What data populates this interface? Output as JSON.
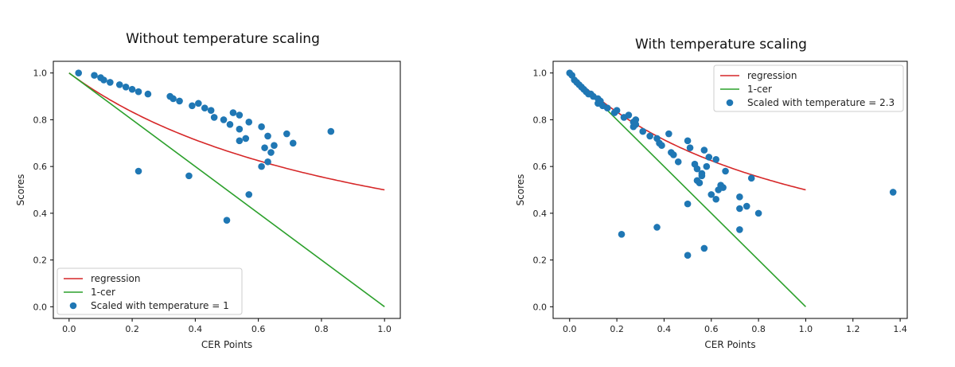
{
  "chart_data": [
    {
      "type": "scatter",
      "title": "Without temperature scaling",
      "xlabel": "CER Points",
      "ylabel": "Scores",
      "xlim": [
        -0.05,
        1.05
      ],
      "ylim": [
        -0.05,
        1.05
      ],
      "xticks": [
        "0.0",
        "0.2",
        "0.4",
        "0.6",
        "0.8",
        "1.0"
      ],
      "yticks": [
        "0.0",
        "0.2",
        "0.4",
        "0.6",
        "0.8",
        "1.0"
      ],
      "legend_position": "lower-left",
      "grid": false,
      "series": [
        {
          "name": "regression",
          "kind": "line",
          "color": "#d62728",
          "formula": "1/(1+x)",
          "x": [
            0,
            0.1,
            0.2,
            0.3,
            0.4,
            0.5,
            0.6,
            0.7,
            0.8,
            0.9,
            1.0
          ],
          "y": [
            1.0,
            0.909,
            0.833,
            0.769,
            0.714,
            0.667,
            0.625,
            0.588,
            0.556,
            0.526,
            0.5
          ]
        },
        {
          "name": "1-cer",
          "kind": "line",
          "color": "#2ca02c",
          "x": [
            0,
            1.0
          ],
          "y": [
            1.0,
            0.0
          ]
        },
        {
          "name": "Scaled with temperature = 1",
          "kind": "scatter",
          "color": "#1f77b4",
          "points": [
            [
              0.03,
              1.0
            ],
            [
              0.08,
              0.99
            ],
            [
              0.1,
              0.98
            ],
            [
              0.11,
              0.97
            ],
            [
              0.13,
              0.96
            ],
            [
              0.16,
              0.95
            ],
            [
              0.18,
              0.94
            ],
            [
              0.2,
              0.93
            ],
            [
              0.22,
              0.92
            ],
            [
              0.25,
              0.91
            ],
            [
              0.32,
              0.9
            ],
            [
              0.33,
              0.89
            ],
            [
              0.35,
              0.88
            ],
            [
              0.39,
              0.86
            ],
            [
              0.41,
              0.87
            ],
            [
              0.43,
              0.85
            ],
            [
              0.45,
              0.84
            ],
            [
              0.46,
              0.81
            ],
            [
              0.49,
              0.8
            ],
            [
              0.51,
              0.78
            ],
            [
              0.52,
              0.83
            ],
            [
              0.54,
              0.82
            ],
            [
              0.54,
              0.76
            ],
            [
              0.54,
              0.71
            ],
            [
              0.56,
              0.72
            ],
            [
              0.57,
              0.79
            ],
            [
              0.61,
              0.77
            ],
            [
              0.62,
              0.68
            ],
            [
              0.63,
              0.73
            ],
            [
              0.64,
              0.66
            ],
            [
              0.65,
              0.69
            ],
            [
              0.61,
              0.6
            ],
            [
              0.63,
              0.62
            ],
            [
              0.69,
              0.74
            ],
            [
              0.71,
              0.7
            ],
            [
              0.83,
              0.75
            ],
            [
              0.22,
              0.58
            ],
            [
              0.38,
              0.56
            ],
            [
              0.57,
              0.48
            ],
            [
              0.5,
              0.37
            ]
          ]
        }
      ]
    },
    {
      "type": "scatter",
      "title": "With temperature scaling",
      "xlabel": "CER Points",
      "ylabel": "Scores",
      "xlim": [
        -0.07,
        1.43
      ],
      "ylim": [
        -0.05,
        1.05
      ],
      "xticks": [
        "0.0",
        "0.2",
        "0.4",
        "0.6",
        "0.8",
        "1.0",
        "1.2",
        "1.4"
      ],
      "yticks": [
        "0.0",
        "0.2",
        "0.4",
        "0.6",
        "0.8",
        "1.0"
      ],
      "legend_position": "upper-right",
      "grid": false,
      "series": [
        {
          "name": "regression",
          "kind": "line",
          "color": "#d62728",
          "formula": "1/(1+x)",
          "x": [
            0,
            0.1,
            0.2,
            0.3,
            0.4,
            0.5,
            0.6,
            0.7,
            0.8,
            0.9,
            1.0
          ],
          "y": [
            1.0,
            0.909,
            0.833,
            0.769,
            0.714,
            0.667,
            0.625,
            0.588,
            0.556,
            0.526,
            0.5
          ]
        },
        {
          "name": "1-cer",
          "kind": "line",
          "color": "#2ca02c",
          "x": [
            0,
            1.0
          ],
          "y": [
            1.0,
            0.0
          ]
        },
        {
          "name": "Scaled with temperature = 2.3",
          "kind": "scatter",
          "color": "#1f77b4",
          "points": [
            [
              0.0,
              1.0
            ],
            [
              0.01,
              0.99
            ],
            [
              0.02,
              0.97
            ],
            [
              0.03,
              0.96
            ],
            [
              0.04,
              0.95
            ],
            [
              0.05,
              0.94
            ],
            [
              0.06,
              0.93
            ],
            [
              0.07,
              0.92
            ],
            [
              0.08,
              0.91
            ],
            [
              0.09,
              0.91
            ],
            [
              0.1,
              0.9
            ],
            [
              0.12,
              0.89
            ],
            [
              0.12,
              0.87
            ],
            [
              0.13,
              0.88
            ],
            [
              0.14,
              0.86
            ],
            [
              0.16,
              0.85
            ],
            [
              0.19,
              0.83
            ],
            [
              0.2,
              0.84
            ],
            [
              0.23,
              0.81
            ],
            [
              0.25,
              0.82
            ],
            [
              0.27,
              0.79
            ],
            [
              0.27,
              0.77
            ],
            [
              0.28,
              0.8
            ],
            [
              0.28,
              0.78
            ],
            [
              0.31,
              0.75
            ],
            [
              0.34,
              0.73
            ],
            [
              0.37,
              0.72
            ],
            [
              0.38,
              0.7
            ],
            [
              0.39,
              0.69
            ],
            [
              0.42,
              0.74
            ],
            [
              0.43,
              0.66
            ],
            [
              0.44,
              0.65
            ],
            [
              0.46,
              0.62
            ],
            [
              0.5,
              0.71
            ],
            [
              0.51,
              0.68
            ],
            [
              0.53,
              0.61
            ],
            [
              0.54,
              0.59
            ],
            [
              0.54,
              0.54
            ],
            [
              0.55,
              0.53
            ],
            [
              0.56,
              0.57
            ],
            [
              0.56,
              0.56
            ],
            [
              0.57,
              0.67
            ],
            [
              0.58,
              0.6
            ],
            [
              0.59,
              0.64
            ],
            [
              0.6,
              0.48
            ],
            [
              0.62,
              0.46
            ],
            [
              0.62,
              0.63
            ],
            [
              0.63,
              0.5
            ],
            [
              0.64,
              0.52
            ],
            [
              0.65,
              0.51
            ],
            [
              0.66,
              0.58
            ],
            [
              0.72,
              0.47
            ],
            [
              0.72,
              0.42
            ],
            [
              0.72,
              0.33
            ],
            [
              0.75,
              0.43
            ],
            [
              0.77,
              0.55
            ],
            [
              0.8,
              0.4
            ],
            [
              0.22,
              0.31
            ],
            [
              0.37,
              0.34
            ],
            [
              0.5,
              0.44
            ],
            [
              0.5,
              0.22
            ],
            [
              0.57,
              0.25
            ],
            [
              1.37,
              0.49
            ]
          ]
        }
      ]
    }
  ]
}
